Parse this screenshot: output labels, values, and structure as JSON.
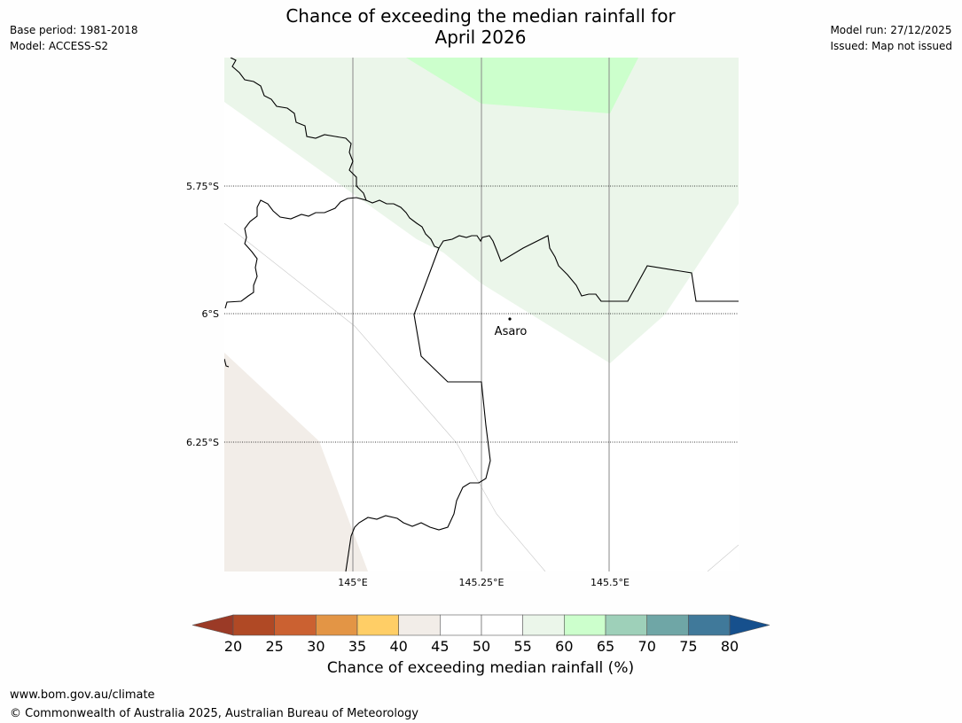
{
  "meta": {
    "base_period": "Base period: 1981-2018",
    "model": "Model: ACCESS-S2",
    "model_run": "Model run: 27/12/2025",
    "issued": "Issued: Map not issued"
  },
  "title": {
    "line1": "Chance of exceeding the median rainfall for",
    "line2": "April 2026"
  },
  "map": {
    "lat_labels": [
      "5.75°S",
      "6°S",
      "6.25°S"
    ],
    "lon_labels": [
      "145°E",
      "145.25°E",
      "145.5°E"
    ],
    "place": "Asaro",
    "colors": {
      "region_60_65": "#ebf6ea",
      "region_65_70": "#ccffcc",
      "region_40_45": "#f2ede8",
      "coast": "#000000"
    }
  },
  "colorbar": {
    "ticks": [
      "20",
      "25",
      "30",
      "35",
      "40",
      "45",
      "50",
      "55",
      "60",
      "65",
      "70",
      "75",
      "80"
    ],
    "colors": [
      "#9b3a26",
      "#b04925",
      "#cb6131",
      "#e39545",
      "#ffce66",
      "#f2ede8",
      "#ffffff",
      "#ffffff",
      "#ebf6ea",
      "#ccffcc",
      "#9ed0b9",
      "#6fa6a6",
      "#40799a",
      "#16508d"
    ],
    "label": "Chance of exceeding median rainfall (%)"
  },
  "footer": {
    "url": "www.bom.gov.au/climate",
    "copyright": "© Commonwealth of Australia 2025, Australian Bureau of Meteorology"
  }
}
